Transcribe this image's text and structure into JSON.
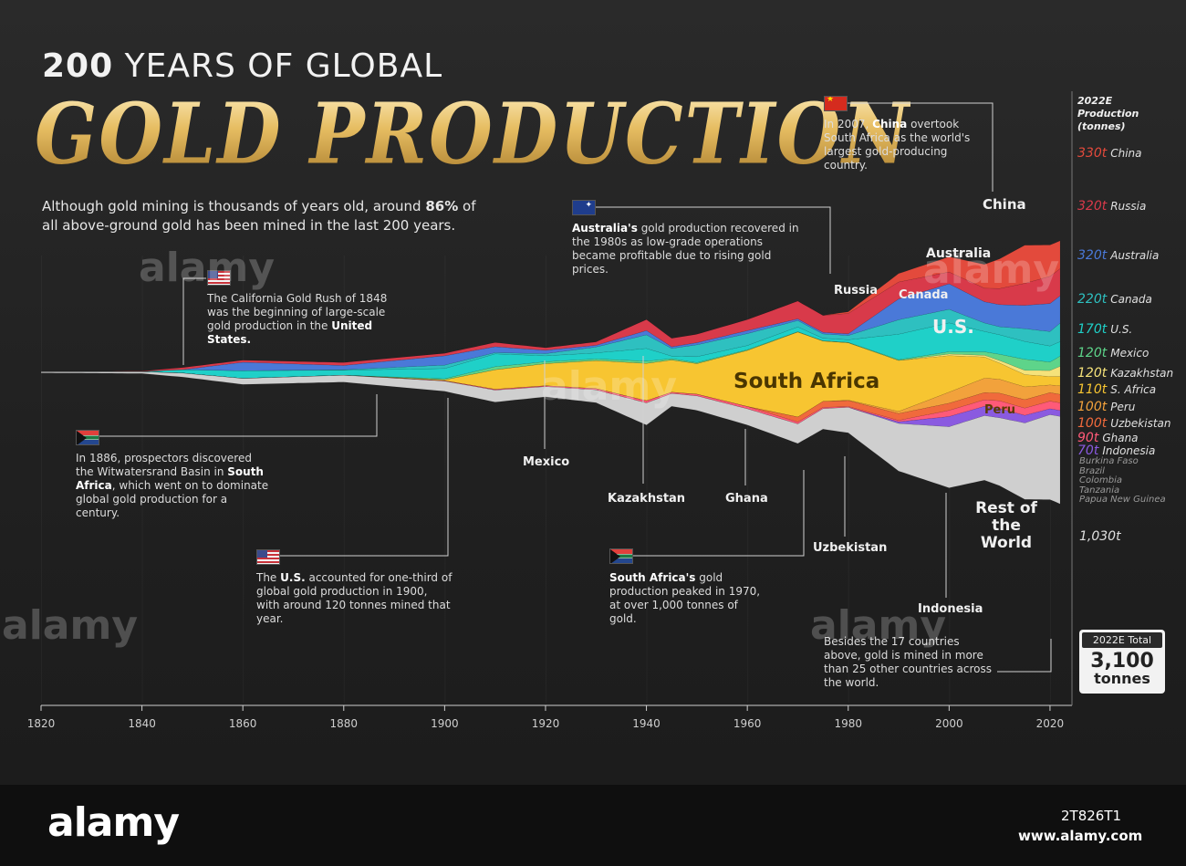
{
  "title_line1_bold": "200",
  "title_line1_rest": " YEARS OF GLOBAL",
  "title_line2": "GOLD PRODUCTION",
  "intro_pre": "Although gold mining is thousands of years old, around ",
  "intro_bold": "86%",
  "intro_post": " of all above-ground gold has been mined in the last 200 years.",
  "annotations": {
    "california": {
      "t1": "The California Gold Rush of 1848 was the beginning of large-scale gold production in the ",
      "b1": "United States."
    },
    "witwatersrand": {
      "t1": "In 1886, prospectors discovered the Witwatersrand Basin in ",
      "b1": "South Africa",
      "t2": ", which went on to dominate global gold production for a century."
    },
    "us1900": {
      "t0": "The ",
      "b1": "U.S.",
      "t1": " accounted for one-third of global gold production in 1900, with around 120 tonnes mined that year."
    },
    "australia": {
      "b1": "Australia's",
      "t1": " gold production recovered in the 1980s as low-grade operations became profitable due to rising gold prices."
    },
    "china": {
      "t0": "In 2007, ",
      "b1": "China",
      "t1": " overtook South Africa as the world's largest gold-producing country."
    },
    "southafrica": {
      "b1": "South Africa's",
      "t1": " gold production peaked in 1970, at over 1,000 tonnes of gold."
    },
    "others": {
      "t1": "Besides the 17 countries above, gold is mined in more than 25 other countries across the world."
    }
  },
  "area_labels": {
    "china": "China",
    "russia": "Russia",
    "australia": "Australia",
    "canada": "Canada",
    "us": "U.S.",
    "south_africa": "South Africa",
    "peru": "Peru",
    "rest": "Rest of the World",
    "mexico": "Mexico",
    "kazakhstan": "Kazakhstan",
    "ghana": "Ghana",
    "uzbekistan": "Uzbekistan",
    "indonesia": "Indonesia"
  },
  "legend": {
    "header": "2022E Production (tonnes)",
    "rows": [
      {
        "value": "330t",
        "name": "China",
        "color": "#e34a3c"
      },
      {
        "value": "320t",
        "name": "Russia",
        "color": "#d83a4a"
      },
      {
        "value": "320t",
        "name": "Australia",
        "color": "#4a79d8"
      },
      {
        "value": "220t",
        "name": "Canada",
        "color": "#2ec0c0"
      },
      {
        "value": "170t",
        "name": "U.S.",
        "color": "#1fd0c8"
      },
      {
        "value": "120t",
        "name": "Mexico",
        "color": "#5ed48a"
      },
      {
        "value": "120t",
        "name": "Kazakhstan",
        "color": "#f5e27a"
      },
      {
        "value": "110t",
        "name": "S. Africa",
        "color": "#f7c531"
      },
      {
        "value": "100t",
        "name": "Peru",
        "color": "#f2a23c"
      },
      {
        "value": "100t",
        "name": "Uzbekistan",
        "color": "#f06a3c"
      },
      {
        "value": "90t",
        "name": "Ghana",
        "color": "#ff5a78"
      },
      {
        "value": "70t",
        "name": "Indonesia",
        "color": "#8a5ae0"
      }
    ],
    "small_countries": [
      "Burkina Faso",
      "Brazil",
      "Colombia",
      "Tanzania",
      "Papua New Guinea"
    ],
    "rest_value": "1,030t"
  },
  "total": {
    "label": "2022E Total",
    "value": "3,100",
    "unit": "tonnes"
  },
  "footer": {
    "logo": "alamy",
    "image_id": "2T826T1",
    "url": "www.alamy.com"
  },
  "watermark": "alamy",
  "chart_data": {
    "type": "area",
    "x": [
      1820,
      1840,
      1848,
      1860,
      1880,
      1900,
      1910,
      1920,
      1930,
      1940,
      1945,
      1950,
      1960,
      1970,
      1975,
      1980,
      1990,
      2000,
      2007,
      2010,
      2015,
      2020,
      2022
    ],
    "xlim": [
      1820,
      2022
    ],
    "x_ticks": [
      "1820",
      "1840",
      "1860",
      "1880",
      "1900",
      "1920",
      "1940",
      "1960",
      "1980",
      "2000",
      "2020"
    ],
    "series": [
      {
        "name": "Rest of the World",
        "color": "#cfcfcf",
        "values": [
          12,
          20,
          45,
          70,
          80,
          120,
          140,
          120,
          150,
          260,
          150,
          170,
          190,
          230,
          240,
          300,
          560,
          720,
          760,
          800,
          900,
          1000,
          1030
        ]
      },
      {
        "name": "Indonesia",
        "color": "#8a5ae0",
        "values": [
          0,
          0,
          0,
          0,
          0,
          0,
          0,
          0,
          0,
          0,
          0,
          0,
          0,
          0,
          0,
          0,
          20,
          120,
          110,
          110,
          90,
          70,
          70
        ]
      },
      {
        "name": "Ghana",
        "color": "#ff5a78",
        "values": [
          0,
          0,
          0,
          0,
          0,
          5,
          10,
          10,
          15,
          25,
          15,
          20,
          27,
          22,
          16,
          10,
          17,
          72,
          76,
          90,
          85,
          90,
          90
        ]
      },
      {
        "name": "Uzbekistan",
        "color": "#f06a3c",
        "values": [
          0,
          0,
          0,
          0,
          0,
          0,
          0,
          0,
          0,
          0,
          0,
          0,
          0,
          60,
          70,
          70,
          80,
          85,
          85,
          90,
          100,
          100,
          100
        ]
      },
      {
        "name": "Peru",
        "color": "#f2a23c",
        "values": [
          0,
          0,
          0,
          0,
          0,
          0,
          0,
          0,
          0,
          0,
          0,
          0,
          0,
          0,
          0,
          5,
          25,
          130,
          170,
          165,
          150,
          90,
          100
        ]
      },
      {
        "name": "South Africa",
        "color": "#f7c531",
        "values": [
          0,
          0,
          0,
          0,
          0,
          10,
          230,
          260,
          330,
          440,
          380,
          360,
          660,
          1000,
          710,
          675,
          600,
          430,
          250,
          190,
          145,
          100,
          110
        ]
      },
      {
        "name": "Kazakhstan",
        "color": "#f5e27a",
        "values": [
          0,
          0,
          0,
          0,
          0,
          0,
          0,
          0,
          0,
          0,
          0,
          0,
          0,
          0,
          0,
          0,
          0,
          20,
          20,
          30,
          50,
          70,
          120
        ]
      },
      {
        "name": "Mexico",
        "color": "#5ed48a",
        "values": [
          0,
          0,
          0,
          0,
          0,
          13,
          37,
          23,
          20,
          27,
          16,
          12,
          9,
          5,
          5,
          6,
          10,
          26,
          40,
          73,
          130,
          100,
          120
        ]
      },
      {
        "name": "U.S.",
        "color": "#1fd0c8",
        "values": [
          0,
          2,
          40,
          90,
          60,
          120,
          150,
          70,
          70,
          150,
          30,
          70,
          50,
          55,
          30,
          30,
          300,
          340,
          240,
          230,
          210,
          190,
          170
        ]
      },
      {
        "name": "Canada",
        "color": "#2ec0c0",
        "values": [
          0,
          0,
          0,
          0,
          5,
          40,
          15,
          25,
          70,
          160,
          90,
          140,
          140,
          75,
          50,
          50,
          170,
          160,
          100,
          95,
          150,
          170,
          220
        ]
      },
      {
        "name": "Australia",
        "color": "#4a79d8",
        "values": [
          0,
          0,
          0,
          100,
          50,
          110,
          70,
          40,
          20,
          50,
          20,
          25,
          35,
          20,
          18,
          20,
          245,
          300,
          250,
          260,
          275,
          330,
          320
        ]
      },
      {
        "name": "Russia",
        "color": "#d83a4a",
        "values": [
          0,
          5,
          25,
          25,
          35,
          30,
          50,
          30,
          40,
          130,
          100,
          100,
          130,
          210,
          200,
          240,
          200,
          140,
          160,
          190,
          260,
          320,
          320
        ]
      },
      {
        "name": "China",
        "color": "#e34a3c",
        "values": [
          0,
          0,
          0,
          0,
          0,
          0,
          0,
          0,
          0,
          0,
          0,
          0,
          0,
          0,
          0,
          20,
          100,
          180,
          280,
          350,
          450,
          370,
          330
        ]
      }
    ],
    "total_2022": 3100,
    "unit": "tonnes"
  }
}
